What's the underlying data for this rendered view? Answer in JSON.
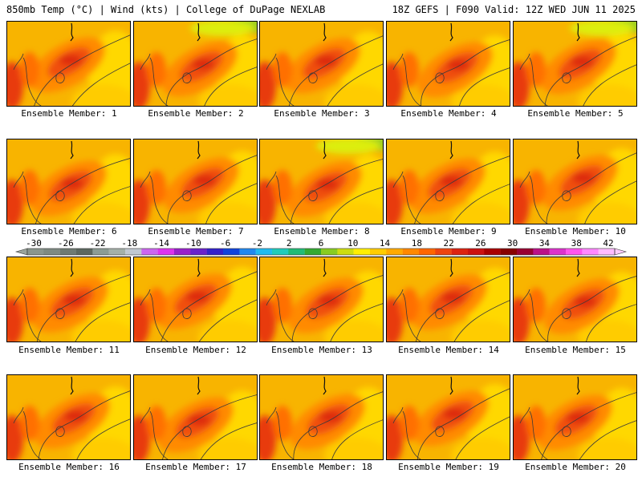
{
  "header": {
    "left": "850mb Temp (°C) | Wind (kts) | College of DuPage NEXLAB",
    "right": "18Z GEFS | F090 Valid: 12Z WED JUN 11 2025"
  },
  "panels": [
    {
      "label": "Ensemble Member: 1"
    },
    {
      "label": "Ensemble Member: 2"
    },
    {
      "label": "Ensemble Member: 3"
    },
    {
      "label": "Ensemble Member: 4"
    },
    {
      "label": "Ensemble Member: 5"
    },
    {
      "label": "Ensemble Member: 6"
    },
    {
      "label": "Ensemble Member: 7"
    },
    {
      "label": "Ensemble Member: 8"
    },
    {
      "label": "Ensemble Member: 9"
    },
    {
      "label": "Ensemble Member: 10"
    },
    {
      "label": "Ensemble Member: 11"
    },
    {
      "label": "Ensemble Member: 12"
    },
    {
      "label": "Ensemble Member: 13"
    },
    {
      "label": "Ensemble Member: 14"
    },
    {
      "label": "Ensemble Member: 15"
    },
    {
      "label": "Ensemble Member: 16"
    },
    {
      "label": "Ensemble Member: 17"
    },
    {
      "label": "Ensemble Member: 18"
    },
    {
      "label": "Ensemble Member: 19"
    },
    {
      "label": "Ensemble Member: 20"
    }
  ],
  "colorbar": {
    "tick_labels": [
      "-30",
      "-26",
      "-22",
      "-18",
      "-14",
      "-10",
      "-6",
      "-2",
      "2",
      "6",
      "10",
      "14",
      "18",
      "22",
      "26",
      "30",
      "34",
      "38",
      "42"
    ],
    "colors": [
      "#8a968e",
      "#7e8a82",
      "#6e7a72",
      "#5c6860",
      "#8c9c94",
      "#a4b0a8",
      "#c0c8d0",
      "#cc66ee",
      "#dd33ee",
      "#9922cc",
      "#6a22cc",
      "#3322cc",
      "#1144dd",
      "#2288ee",
      "#22bbee",
      "#22ccbb",
      "#22bb77",
      "#33aa33",
      "#88cc22",
      "#ccdd11",
      "#ffee00",
      "#ffcc00",
      "#ffaa00",
      "#ff8800",
      "#ff6600",
      "#ee4411",
      "#dd2211",
      "#cc1111",
      "#aa0000",
      "#880000",
      "#990033",
      "#bb1188",
      "#dd33cc",
      "#ff55ee",
      "#ff88ff",
      "#ffbbff"
    ]
  }
}
